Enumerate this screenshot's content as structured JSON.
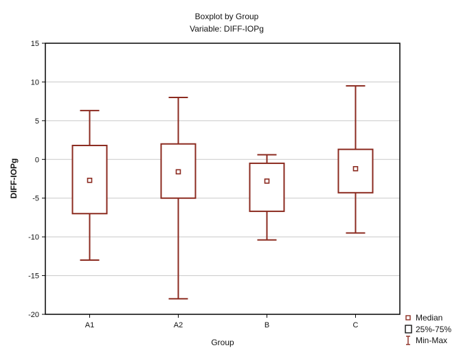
{
  "chart_data": {
    "type": "boxplot",
    "title": "Boxplot by Group",
    "subtitle": "Variable: DIFF-IOPg",
    "xlabel": "Group",
    "ylabel": "DIFF-IOPg",
    "ylim": [
      -20,
      15
    ],
    "yticks": [
      15,
      10,
      5,
      0,
      -5,
      -10,
      -15,
      -20
    ],
    "grid": true,
    "legend_position": "bottom-right",
    "legend": {
      "median": "Median",
      "box": "25%-75%",
      "whisker": "Min-Max"
    },
    "groups": [
      {
        "label": "A1",
        "min": -13.0,
        "q1": -7.0,
        "median": -2.7,
        "q3": 1.8,
        "max": 6.3
      },
      {
        "label": "A2",
        "min": -18.0,
        "q1": -5.0,
        "median": -1.6,
        "q3": 2.0,
        "max": 8.0
      },
      {
        "label": "B",
        "min": -10.4,
        "q1": -6.7,
        "median": -2.8,
        "q3": -0.5,
        "max": 0.6
      },
      {
        "label": "C",
        "min": -9.5,
        "q1": -4.3,
        "median": -1.2,
        "q3": 1.3,
        "max": 9.5
      }
    ],
    "colors": {
      "mark": "#8b2a1f",
      "grid": "#c8c8c8",
      "axis": "#000000"
    }
  }
}
